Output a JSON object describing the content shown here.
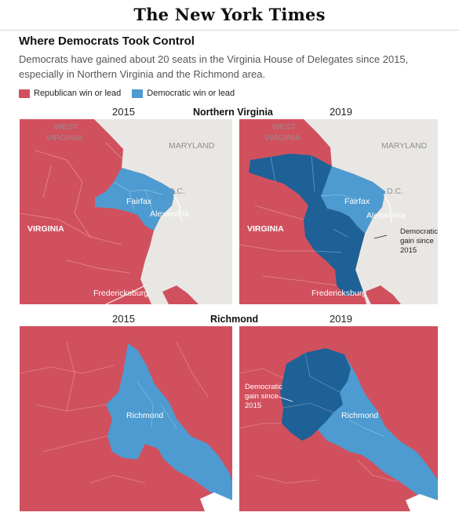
{
  "masthead": "The New York Times",
  "title": "Where Democrats Took Control",
  "subtitle": "Democrats have gained about 20 seats in the Virginia House of Delegates since 2015, especially in Northern Virginia and the Richmond area.",
  "legend": {
    "republican": {
      "label": "Republican win or lead",
      "color": "#d1505e"
    },
    "democratic": {
      "label": "Democratic win or lead",
      "color": "#4d9bd0"
    },
    "dem_gain_color": "#1e6197",
    "background_color": "#e9e7e4"
  },
  "regions": {
    "northern": {
      "name": "Northern Virginia",
      "year_left": "2015",
      "year_right": "2019",
      "labels": {
        "west_virginia_1": "WEST",
        "west_virginia_2": "VIRGINIA",
        "maryland": "MARYLAND",
        "dc": "D.C.",
        "virginia": "VIRGINIA",
        "fairfax": "Fairfax",
        "alexandria": "Alexandria",
        "fredericksburg": "Fredericksburg"
      },
      "annotation": [
        "Democratic",
        "gain since",
        "2015"
      ]
    },
    "richmond": {
      "name": "Richmond",
      "year_left": "2015",
      "year_right": "2019",
      "labels": {
        "richmond": "Richmond"
      },
      "annotation": [
        "Democratic",
        "gain since",
        "2015"
      ]
    }
  }
}
